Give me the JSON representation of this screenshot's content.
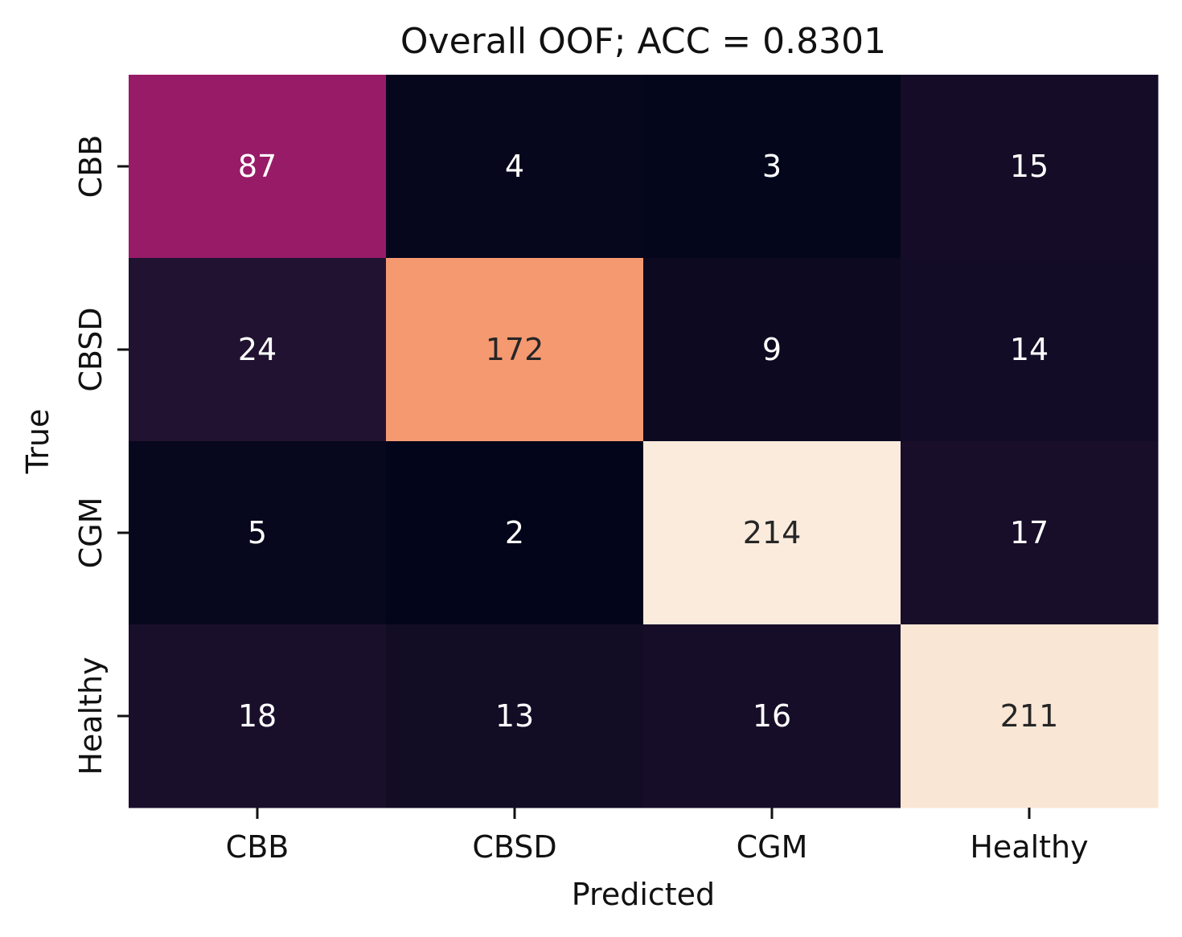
{
  "chart_data": {
    "type": "heatmap",
    "title": "Overall OOF; ACC = 0.8301",
    "xlabel": "Predicted",
    "ylabel": "True",
    "x_categories": [
      "CBB",
      "CBSD",
      "CGM",
      "Healthy"
    ],
    "y_categories": [
      "CBB",
      "CBSD",
      "CGM",
      "Healthy"
    ],
    "values": [
      [
        87,
        4,
        3,
        15
      ],
      [
        24,
        172,
        9,
        14
      ],
      [
        5,
        2,
        214,
        17
      ],
      [
        18,
        13,
        16,
        211
      ]
    ],
    "value_range": [
      2,
      214
    ],
    "colormap": "rocket",
    "colorbar": false,
    "grid": false
  }
}
